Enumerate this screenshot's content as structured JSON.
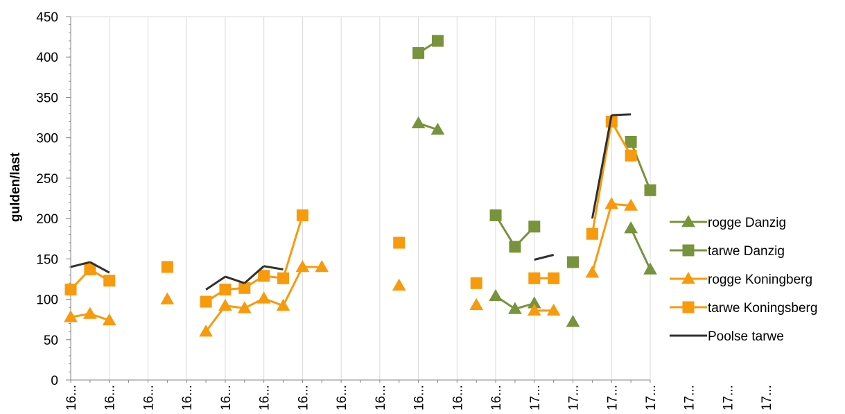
{
  "chart_data": {
    "type": "line",
    "title": "",
    "xlabel": "",
    "ylabel": "gulden/last",
    "ylim": [
      0,
      450
    ],
    "yticks": [
      0,
      50,
      100,
      150,
      200,
      250,
      300,
      350,
      400,
      450
    ],
    "x_tick_labels": [
      "16...",
      "16...",
      "16...",
      "16...",
      "16...",
      "16...",
      "16...",
      "16...",
      "16...",
      "16...",
      "16...",
      "16...",
      "17...",
      "17...",
      "17...",
      "17...",
      "17...",
      "17...",
      "17..."
    ],
    "grid": {
      "x": true,
      "y": false
    },
    "legend_position": "right",
    "categories_count": 31,
    "series": [
      {
        "name": "rogge Danzig",
        "color": "#77933C",
        "marker": "triangle",
        "values": [
          null,
          null,
          null,
          null,
          null,
          null,
          null,
          null,
          null,
          null,
          null,
          null,
          null,
          null,
          null,
          null,
          null,
          null,
          318,
          310,
          null,
          null,
          104,
          88,
          95,
          null,
          72,
          null,
          null,
          188,
          137
        ]
      },
      {
        "name": "tarwe Danzig",
        "color": "#77933C",
        "marker": "square",
        "values": [
          null,
          null,
          null,
          null,
          null,
          null,
          null,
          null,
          null,
          null,
          null,
          null,
          null,
          null,
          null,
          null,
          null,
          null,
          405,
          420,
          null,
          null,
          204,
          165,
          190,
          null,
          146,
          null,
          null,
          295,
          235
        ]
      },
      {
        "name": "rogge Koningberg",
        "color": "#F79A0C",
        "marker": "triangle",
        "values": [
          78,
          82,
          74,
          null,
          null,
          100,
          null,
          60,
          92,
          89,
          101,
          92,
          140,
          140,
          null,
          null,
          null,
          117,
          null,
          null,
          null,
          93,
          null,
          null,
          86,
          86,
          null,
          133,
          218,
          216,
          null
        ]
      },
      {
        "name": "tarwe Koningsberg",
        "color": "#F79A0C",
        "marker": "square",
        "values": [
          112,
          137,
          123,
          null,
          null,
          140,
          null,
          97,
          112,
          114,
          129,
          126,
          204,
          null,
          null,
          null,
          null,
          170,
          null,
          null,
          null,
          120,
          null,
          null,
          126,
          126,
          null,
          181,
          320,
          278,
          null
        ]
      },
      {
        "name": "Poolse tarwe",
        "color": "#303030",
        "marker": "none",
        "values": [
          140,
          146,
          133,
          null,
          null,
          null,
          null,
          112,
          128,
          120,
          141,
          137,
          null,
          null,
          null,
          null,
          null,
          null,
          null,
          null,
          null,
          null,
          null,
          null,
          149,
          155,
          null,
          200,
          328,
          329,
          null
        ]
      }
    ]
  }
}
